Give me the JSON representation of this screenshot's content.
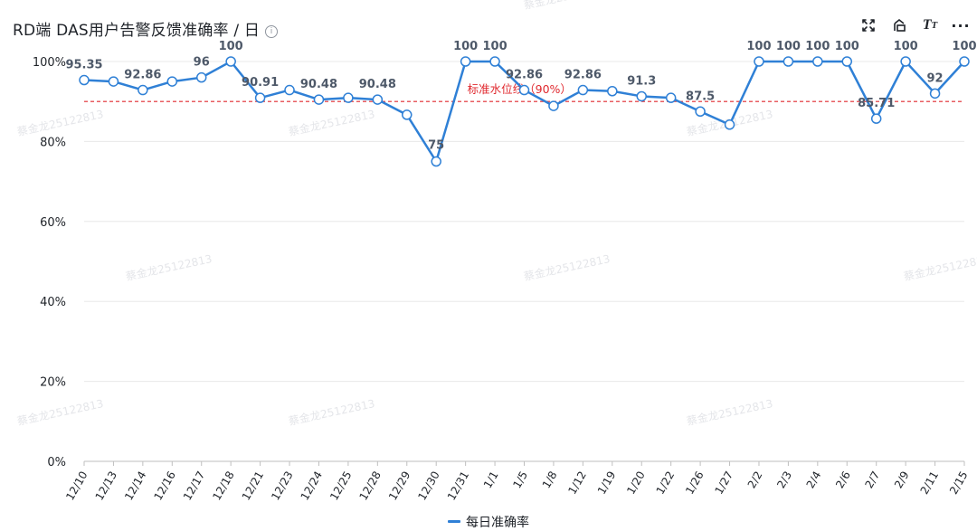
{
  "header": {
    "title": "RD端 DAS用户告警反馈准确率 / 日",
    "info_icon": "info-icon",
    "tools": [
      "fullscreen-icon",
      "rotate-icon",
      "text-format-icon",
      "more-icon"
    ]
  },
  "colors": {
    "series": "#2f80d6",
    "threshold": "#e0282e",
    "grid": "#e8e8e8",
    "text": "#1f2329"
  },
  "watermark": "蔡金龙25122813",
  "chart_data": {
    "type": "line",
    "title": "RD端 DAS用户告警反馈准确率 / 日",
    "categories": [
      "12/10",
      "12/13",
      "12/14",
      "12/16",
      "12/17",
      "12/18",
      "12/21",
      "12/23",
      "12/24",
      "12/25",
      "12/28",
      "12/29",
      "12/30",
      "12/31",
      "1/1",
      "1/5",
      "1/8",
      "1/12",
      "1/19",
      "1/20",
      "1/22",
      "1/26",
      "1/27",
      "2/2",
      "2/3",
      "2/4",
      "2/6",
      "2/7",
      "2/9",
      "2/11",
      "2/15"
    ],
    "series": [
      {
        "name": "每日准确率",
        "values": [
          95.35,
          95,
          92.86,
          95,
          96,
          100,
          90.91,
          92.86,
          90.48,
          90.91,
          90.48,
          86.67,
          75,
          100,
          100,
          92.86,
          88.89,
          92.86,
          92.59,
          91.3,
          90.91,
          87.5,
          84.21,
          100,
          100,
          100,
          100,
          85.71,
          100,
          92,
          100
        ]
      }
    ],
    "data_labels": {
      "0": "95.35",
      "2": "92.86",
      "4": "96",
      "5": "100",
      "6": "90.91",
      "8": "90.48",
      "10": "90.48",
      "12": "75",
      "13": "100",
      "14": "100",
      "15": "92.86",
      "17": "92.86",
      "19": "91.3",
      "21": "87.5",
      "23": "100",
      "24": "100",
      "25": "100",
      "26": "100",
      "27": "85.71",
      "28": "100",
      "29": "92",
      "30": "100"
    },
    "ylim": [
      0,
      100
    ],
    "y_ticks": [
      "0%",
      "20%",
      "40%",
      "60%",
      "80%",
      "100%"
    ],
    "threshold": {
      "value": 90,
      "label": "标准水位线（90%）"
    },
    "legend": {
      "position": "bottom",
      "label": "每日准确率"
    },
    "grid": true
  }
}
